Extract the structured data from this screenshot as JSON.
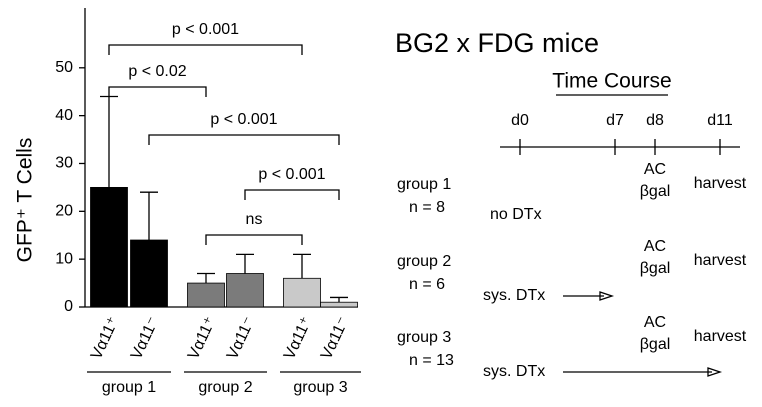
{
  "chart_data": {
    "type": "bar",
    "ylabel": "GFP⁺ T Cells",
    "categories": [
      "Vα11⁺",
      "Vα11⁻",
      "Vα11⁺",
      "Vα11⁻",
      "Vα11⁺",
      "Vα11⁻"
    ],
    "groups": [
      "group 1",
      "group 2",
      "group 3"
    ],
    "values": [
      25,
      14,
      5,
      7,
      6,
      1
    ],
    "errors": [
      19,
      10,
      2,
      4,
      5,
      1
    ],
    "colors": [
      "#000000",
      "#000000",
      "#7b7b7b",
      "#7b7b7b",
      "#c9c9c9",
      "#c9c9c9"
    ],
    "ylim": [
      0,
      62.5
    ],
    "yticks": [
      0,
      10,
      20,
      30,
      40,
      50
    ],
    "annotations": [
      "p < 0.001",
      "p < 0.02",
      "p < 0.001",
      "p < 0.001",
      "ns"
    ]
  },
  "timeline": {
    "title": "BG2 x FDG mice",
    "subtitle": "Time Course",
    "days": [
      "d0",
      "d7",
      "d8",
      "d11"
    ],
    "groups": [
      {
        "label": "group 1",
        "n": "n = 8",
        "treatment": "no DTx",
        "ac": "AC",
        "bgal": "βgal",
        "harvest": "harvest"
      },
      {
        "label": "group 2",
        "n": "n = 6",
        "treatment": "sys. DTx",
        "ac": "AC",
        "bgal": "βgal",
        "harvest": "harvest"
      },
      {
        "label": "group 3",
        "n": "n = 13",
        "treatment": "sys. DTx",
        "ac": "AC",
        "bgal": "βgal",
        "harvest": "harvest"
      }
    ]
  }
}
